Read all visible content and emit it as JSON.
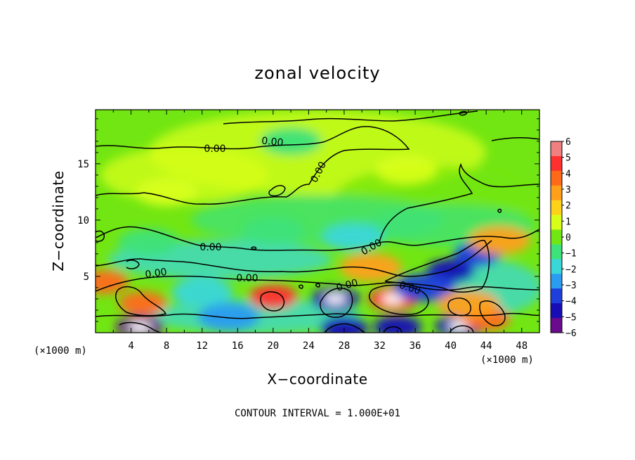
{
  "chart_data": {
    "type": "heatmap",
    "title": "zonal velocity",
    "xlabel": "X−coordinate",
    "ylabel": "Z−coordinate",
    "x_unit_left": "(×1000 m)",
    "x_unit_right": "(×1000 m)",
    "xlim": [
      0,
      50
    ],
    "ylim": [
      0,
      19.8
    ],
    "x_ticks": [
      4,
      8,
      12,
      16,
      20,
      24,
      28,
      32,
      36,
      40,
      44,
      48
    ],
    "y_ticks": [
      5,
      10,
      15
    ],
    "contour_interval_text": "CONTOUR INTERVAL = 1.000E+01",
    "contour_labels": [
      "0.00",
      "0.00",
      "0.00",
      "0.00",
      "0.00",
      "0.00",
      "0.00",
      "0.00",
      "0.00"
    ],
    "colorbar": {
      "range": [
        -6,
        6
      ],
      "tick_labels": [
        "6",
        "5",
        "4",
        "3",
        "2",
        "1",
        "0",
        "−1",
        "−2",
        "−3",
        "−4",
        "−5",
        "−6"
      ],
      "colors": [
        "#f08080",
        "#ff3030",
        "#ff6a1a",
        "#ffa01a",
        "#ffd21a",
        "#d8ff1a",
        "#72e612",
        "#3ee27a",
        "#3ad7d9",
        "#2b9cf0",
        "#1f3fdc",
        "#160eb4",
        "#6a0a8c"
      ]
    },
    "field_description_blobs": [
      {
        "x": 5.3,
        "z": 2.6,
        "v": 4.5
      },
      {
        "x": 20.0,
        "z": 3.2,
        "v": 4.6
      },
      {
        "x": 1.0,
        "z": 4.5,
        "v": 4.0
      },
      {
        "x": 33.5,
        "z": 3.0,
        "v": 5.5
      },
      {
        "x": 27.0,
        "z": 3.0,
        "v": -5.4
      },
      {
        "x": 40.0,
        "z": 5.5,
        "v": -4.6
      },
      {
        "x": 43.0,
        "z": 7.0,
        "v": -4.2
      },
      {
        "x": 37.0,
        "z": 4.0,
        "v": -3.5
      },
      {
        "x": 5.0,
        "z": 0.5,
        "v": -5.5
      },
      {
        "x": 28.0,
        "z": 0.4,
        "v": -4.8
      },
      {
        "x": 34.0,
        "z": 0.5,
        "v": -5.0
      },
      {
        "x": 41.0,
        "z": 0.6,
        "v": -5.2
      },
      {
        "x": 31.0,
        "z": 5.8,
        "v": 3.3
      },
      {
        "x": 45.5,
        "z": 8.2,
        "v": 3.0
      },
      {
        "x": 44.0,
        "z": 1.2,
        "v": 4.0
      },
      {
        "x": 42.0,
        "z": 2.5,
        "v": 3.0
      },
      {
        "x": 20.0,
        "z": 9.0,
        "v": -1.4
      },
      {
        "x": 29.0,
        "z": 8.5,
        "v": -1.7
      },
      {
        "x": 6.0,
        "z": 8.0,
        "v": -1.2
      },
      {
        "x": 12.0,
        "z": 3.6,
        "v": -2.3
      },
      {
        "x": 15.0,
        "z": 1.4,
        "v": -2.6
      },
      {
        "x": 8.0,
        "z": 12.5,
        "v": 0.7
      },
      {
        "x": 35.0,
        "z": 14.5,
        "v": 0.8
      },
      {
        "x": 22.0,
        "z": 17.0,
        "v": -0.6
      }
    ]
  }
}
